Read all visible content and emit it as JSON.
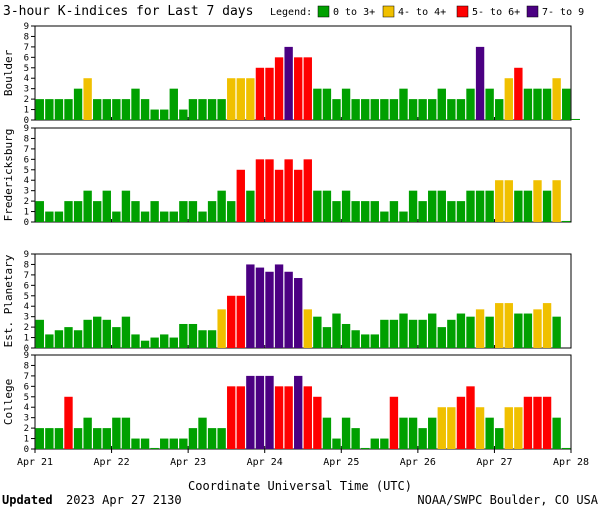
{
  "header": {
    "title": "3-hour K-indices for Last 7 days",
    "legend_label": "Legend:"
  },
  "legend": [
    {
      "label": "0 to 3+",
      "color": "#00a000"
    },
    {
      "label": "4- to 4+",
      "color": "#f0c000"
    },
    {
      "label": "5- to 6+",
      "color": "#ff0000"
    },
    {
      "label": "7- to 9",
      "color": "#4b0082"
    }
  ],
  "footer": {
    "updated_label": "Updated",
    "updated_value": "2023 Apr 27 2130",
    "source": "NOAA/SWPC Boulder, CO USA"
  },
  "chart_data": {
    "type": "bar",
    "xlabel": "Coordinate Universal Time (UTC)",
    "x_ticks": [
      "Apr 21",
      "Apr 22",
      "Apr 23",
      "Apr 24",
      "Apr 25",
      "Apr 26",
      "Apr 27",
      "Apr 28"
    ],
    "ylim": [
      0,
      9
    ],
    "y_ticks": [
      0,
      1,
      2,
      3,
      4,
      5,
      6,
      7,
      8,
      9
    ],
    "slots_per_day": 8,
    "series": [
      {
        "name": "Boulder",
        "values": [
          2,
          2,
          2,
          2,
          3,
          4,
          2,
          2,
          2,
          2,
          3,
          2,
          1,
          1,
          3,
          1,
          2,
          2,
          2,
          2,
          4,
          4,
          4,
          5,
          5,
          6,
          7,
          6,
          6,
          3,
          3,
          2,
          3,
          2,
          2,
          2,
          2,
          2,
          3,
          2,
          2,
          2,
          3,
          2,
          2,
          3,
          7,
          3,
          2,
          4,
          5,
          3,
          3,
          3,
          4,
          3,
          0.1
        ]
      },
      {
        "name": "Fredericksburg",
        "values": [
          2,
          1,
          1,
          2,
          2,
          3,
          2,
          3,
          1,
          3,
          2,
          1,
          2,
          1,
          1,
          2,
          2,
          1,
          2,
          3,
          2,
          5,
          3,
          6,
          6,
          5,
          6,
          5,
          6,
          3,
          3,
          2,
          3,
          2,
          2,
          2,
          1,
          2,
          1,
          3,
          2,
          3,
          3,
          2,
          2,
          3,
          3,
          3,
          4,
          4,
          3,
          3,
          4,
          3,
          4,
          0.1
        ]
      },
      {
        "name": "Est. Planetary",
        "values": [
          2.7,
          1.3,
          1.7,
          2,
          1.7,
          2.7,
          3,
          2.7,
          2,
          3,
          1.3,
          0.7,
          1,
          1.3,
          1,
          2.3,
          2.3,
          1.7,
          1.7,
          3.7,
          5,
          5,
          8,
          7.7,
          7.3,
          8,
          7.3,
          6.7,
          3.7,
          3,
          2,
          3.3,
          2.3,
          1.7,
          1.3,
          1.3,
          2.7,
          2.7,
          3.3,
          2.7,
          2.7,
          3.3,
          2,
          2.7,
          3.3,
          3,
          3.7,
          3,
          4.3,
          4.3,
          3.3,
          3.3,
          3.7,
          4.3,
          3
        ]
      },
      {
        "name": "College",
        "values": [
          2,
          2,
          2,
          5,
          2,
          3,
          2,
          2,
          3,
          3,
          1,
          1,
          0.1,
          1,
          1,
          1,
          2,
          3,
          2,
          2,
          6,
          6,
          7,
          7,
          7,
          6,
          6,
          7,
          6,
          5,
          3,
          1,
          3,
          2,
          0.1,
          1,
          1,
          5,
          3,
          3,
          2,
          3,
          4,
          4,
          5,
          6,
          4,
          3,
          2,
          4,
          4,
          5,
          5,
          5,
          3,
          0.1
        ]
      }
    ]
  }
}
